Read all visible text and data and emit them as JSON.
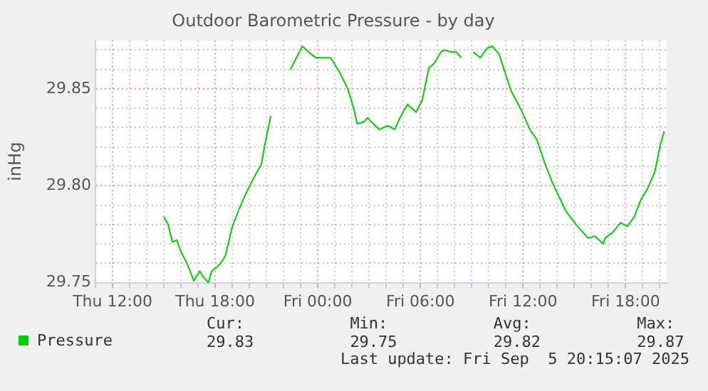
{
  "chart_data": {
    "type": "line",
    "title": "Outdoor Barometric Pressure - by day",
    "ylabel": "inHg",
    "x": [
      "2025-09-04T15:00",
      "2025-09-04T15:15",
      "2025-09-04T15:30",
      "2025-09-04T15:45",
      "2025-09-04T16:00",
      "2025-09-04T16:24",
      "2025-09-04T16:45",
      "2025-09-04T17:06",
      "2025-09-04T17:18",
      "2025-09-04T17:36",
      "2025-09-04T17:48",
      "2025-09-04T18:06",
      "2025-09-04T18:24",
      "2025-09-04T18:36",
      "2025-09-04T19:00",
      "2025-09-04T19:24",
      "2025-09-04T19:48",
      "2025-09-04T20:15",
      "2025-09-04T20:42",
      "2025-09-04T20:54",
      "2025-09-04T21:15",
      "2025-09-04T21:48",
      "2025-09-04T22:24",
      "2025-09-04T23:06",
      "2025-09-04T23:36",
      "2025-09-04T23:54",
      "2025-09-05T00:12",
      "2025-09-05T00:45",
      "2025-09-05T01:15",
      "2025-09-05T01:45",
      "2025-09-05T02:06",
      "2025-09-05T02:18",
      "2025-09-05T02:42",
      "2025-09-05T02:54",
      "2025-09-05T03:15",
      "2025-09-05T03:36",
      "2025-09-05T04:06",
      "2025-09-05T04:30",
      "2025-09-05T04:48",
      "2025-09-05T05:15",
      "2025-09-05T05:45",
      "2025-09-05T06:06",
      "2025-09-05T06:30",
      "2025-09-05T06:48",
      "2025-09-05T07:12",
      "2025-09-05T07:24",
      "2025-09-05T07:48",
      "2025-09-05T08:06",
      "2025-09-05T08:24",
      "2025-09-05T08:45",
      "2025-09-05T09:06",
      "2025-09-05T09:30",
      "2025-09-05T09:54",
      "2025-09-05T10:12",
      "2025-09-05T10:36",
      "2025-09-05T11:00",
      "2025-09-05T11:18",
      "2025-09-05T11:54",
      "2025-09-05T12:24",
      "2025-09-05T12:48",
      "2025-09-05T13:18",
      "2025-09-05T13:42",
      "2025-09-05T14:30",
      "2025-09-05T15:06",
      "2025-09-05T15:48",
      "2025-09-05T16:12",
      "2025-09-05T16:42",
      "2025-09-05T16:48",
      "2025-09-05T17:15",
      "2025-09-05T17:42",
      "2025-09-05T18:06",
      "2025-09-05T18:30",
      "2025-09-05T18:54",
      "2025-09-05T19:15",
      "2025-09-05T19:42",
      "2025-09-05T20:00",
      "2025-09-05T20:15"
    ],
    "series": [
      {
        "name": "Pressure",
        "color": "#00cc00",
        "values": [
          29.784,
          29.78,
          29.771,
          29.772,
          29.766,
          29.759,
          29.751,
          29.756,
          29.753,
          29.75,
          29.756,
          29.758,
          29.761,
          29.764,
          29.779,
          29.788,
          29.796,
          29.804,
          29.811,
          29.821,
          29.836,
          null,
          29.86,
          29.872,
          29.868,
          29.866,
          29.866,
          29.866,
          29.859,
          29.85,
          29.84,
          29.832,
          29.833,
          29.835,
          29.832,
          29.829,
          29.831,
          29.829,
          29.835,
          29.842,
          29.838,
          29.844,
          29.861,
          29.863,
          29.869,
          29.87,
          29.869,
          29.869,
          29.866,
          null,
          29.869,
          29.866,
          29.871,
          29.872,
          29.868,
          29.857,
          29.849,
          29.839,
          29.829,
          29.824,
          29.811,
          29.802,
          29.787,
          29.78,
          29.773,
          29.774,
          29.77,
          29.773,
          29.776,
          29.781,
          29.779,
          29.784,
          29.793,
          29.798,
          29.807,
          29.82,
          29.828
        ]
      }
    ],
    "xlim": [
      "2025-09-04T11:00",
      "2025-09-05T20:24"
    ],
    "xticks": [
      {
        "value": "2025-09-04T11:00",
        "label": null
      },
      {
        "value": "2025-09-04T12:00",
        "label": "Thu 12:00"
      },
      {
        "value": "2025-09-04T13:00",
        "label": null
      },
      {
        "value": "2025-09-04T14:00",
        "label": null
      },
      {
        "value": "2025-09-04T15:00",
        "label": null
      },
      {
        "value": "2025-09-04T16:00",
        "label": null
      },
      {
        "value": "2025-09-04T17:00",
        "label": null
      },
      {
        "value": "2025-09-04T18:00",
        "label": "Thu 18:00"
      },
      {
        "value": "2025-09-04T19:00",
        "label": null
      },
      {
        "value": "2025-09-04T20:00",
        "label": null
      },
      {
        "value": "2025-09-04T21:00",
        "label": null
      },
      {
        "value": "2025-09-04T22:00",
        "label": null
      },
      {
        "value": "2025-09-04T23:00",
        "label": null
      },
      {
        "value": "2025-09-05T00:00",
        "label": "Fri 00:00"
      },
      {
        "value": "2025-09-05T01:00",
        "label": null
      },
      {
        "value": "2025-09-05T02:00",
        "label": null
      },
      {
        "value": "2025-09-05T03:00",
        "label": null
      },
      {
        "value": "2025-09-05T04:00",
        "label": null
      },
      {
        "value": "2025-09-05T05:00",
        "label": null
      },
      {
        "value": "2025-09-05T06:00",
        "label": "Fri 06:00"
      },
      {
        "value": "2025-09-05T07:00",
        "label": null
      },
      {
        "value": "2025-09-05T08:00",
        "label": null
      },
      {
        "value": "2025-09-05T09:00",
        "label": null
      },
      {
        "value": "2025-09-05T10:00",
        "label": null
      },
      {
        "value": "2025-09-05T11:00",
        "label": null
      },
      {
        "value": "2025-09-05T12:00",
        "label": "Fri 12:00"
      },
      {
        "value": "2025-09-05T13:00",
        "label": null
      },
      {
        "value": "2025-09-05T14:00",
        "label": null
      },
      {
        "value": "2025-09-05T15:00",
        "label": null
      },
      {
        "value": "2025-09-05T16:00",
        "label": null
      },
      {
        "value": "2025-09-05T17:00",
        "label": null
      },
      {
        "value": "2025-09-05T18:00",
        "label": "Fri 18:00"
      },
      {
        "value": "2025-09-05T19:00",
        "label": null
      },
      {
        "value": "2025-09-05T20:00",
        "label": null
      }
    ],
    "ylim": [
      29.75,
      29.875
    ],
    "yticks": [
      {
        "value": 29.75,
        "label": "29.75"
      },
      {
        "value": 29.76,
        "label": null
      },
      {
        "value": 29.77,
        "label": null
      },
      {
        "value": 29.78,
        "label": null
      },
      {
        "value": 29.79,
        "label": null
      },
      {
        "value": 29.8,
        "label": "29.80"
      },
      {
        "value": 29.81,
        "label": null
      },
      {
        "value": 29.82,
        "label": null
      },
      {
        "value": 29.83,
        "label": null
      },
      {
        "value": 29.84,
        "label": null
      },
      {
        "value": 29.85,
        "label": "29.85"
      },
      {
        "value": 29.86,
        "label": null
      },
      {
        "value": 29.87,
        "label": null
      }
    ],
    "grid": true,
    "legend": "bottom left",
    "marker": "none",
    "line_style": "solid",
    "annotations": [
      "Cur:\n29.83",
      "Min:\n29.75",
      "Avg:\n29.82",
      "Max:\n29.87",
      "Last update: Fri Sep  5 20:15:07 2025"
    ]
  }
}
